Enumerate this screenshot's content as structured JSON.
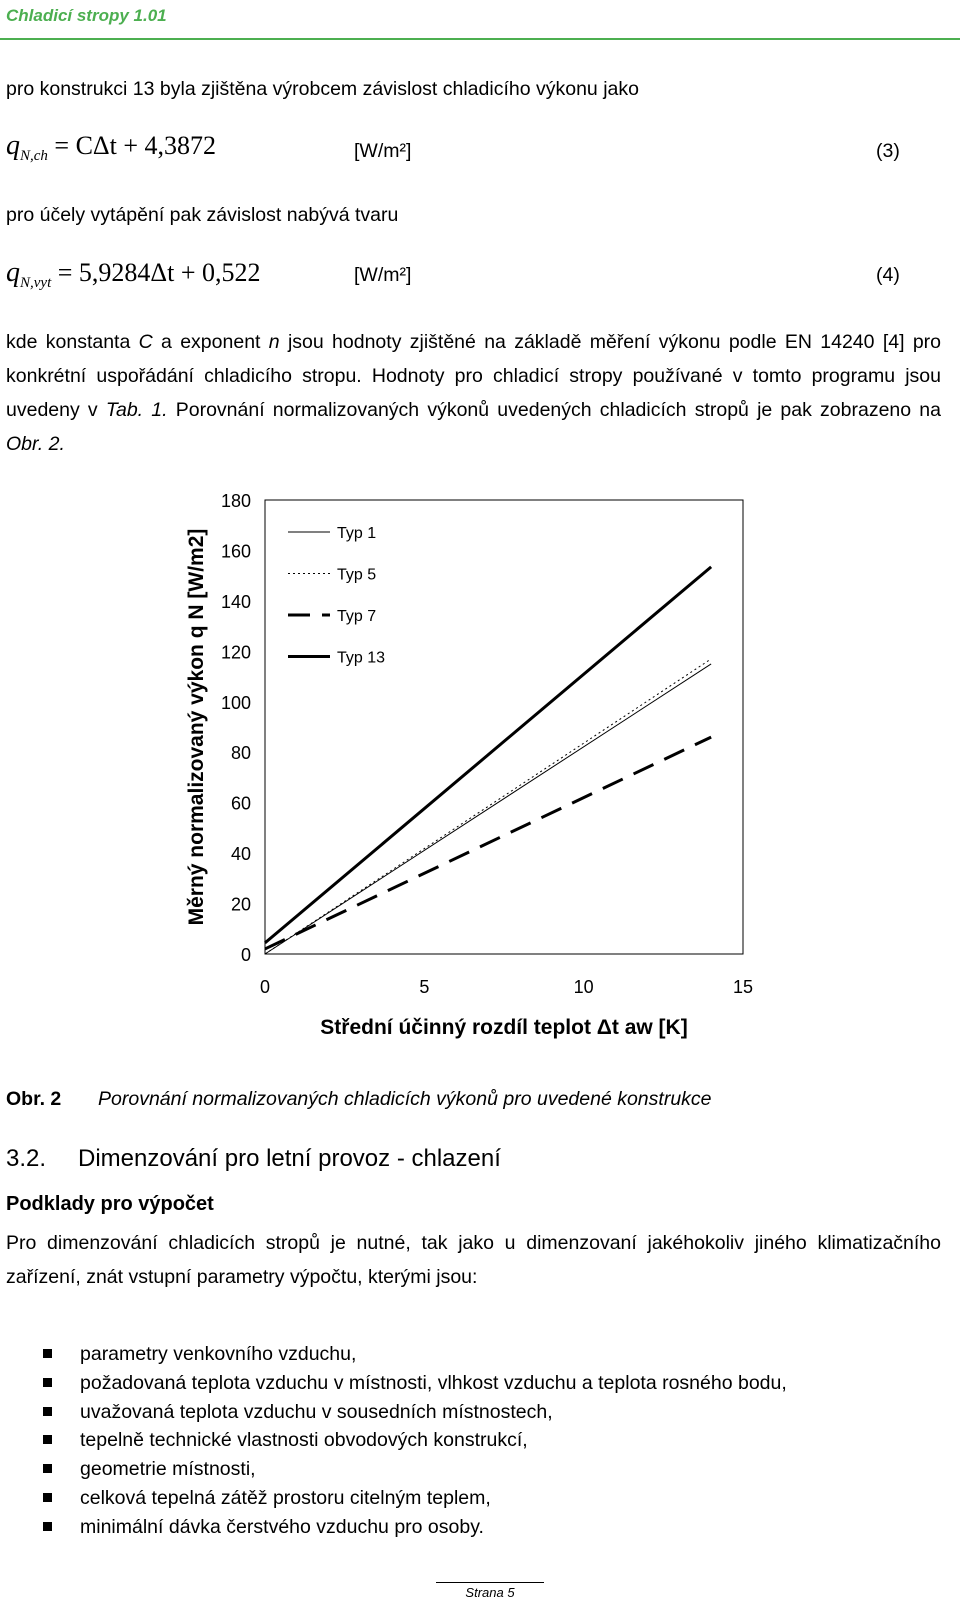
{
  "header": {
    "title": "Chladicí stropy 1.01"
  },
  "paragraph1": "pro konstrukci 13 byla zjištěna výrobcem závislost chladicího výkonu jako",
  "eq3": {
    "lhs": "q",
    "sub": "N,ch",
    "rhs": "= CΔt + 4,3872",
    "unit": "[W/m²]",
    "num": "(3)"
  },
  "paragraph2": "pro účely vytápění pak závislost nabývá tvaru",
  "eq4": {
    "lhs": "q",
    "sub": "N,vyt",
    "rhs": "= 5,9284Δt + 0,522",
    "unit": "[W/m²]",
    "num": "(4)"
  },
  "paragraph3": {
    "part1": "kde konstanta ",
    "C": "C",
    "part2": " a exponent ",
    "n": "n",
    "part3": " jsou hodnoty zjištěné na základě měření výkonu podle EN 14240 [4] pro konkrétní uspořádání chladicího stropu. Hodnoty pro chladicí stropy používané v tomto programu jsou uvedeny v ",
    "tab": "Tab. 1.",
    "part4": " Porovnání normalizovaných výkonů uvedených chladicích stropů je pak zobrazeno na ",
    "obr": "Obr. 2."
  },
  "chart_data": {
    "type": "line",
    "title": "",
    "xlabel": "Střední účinný rozdíl teplot Δt aw [K]",
    "ylabel": "Měrný normalizovaný výkon q N [W/m2]",
    "xlim": [
      0,
      15
    ],
    "ylim": [
      0,
      180
    ],
    "x_ticks": [
      "0",
      "5",
      "10",
      "15"
    ],
    "y_ticks": [
      "0",
      "20",
      "40",
      "60",
      "80",
      "100",
      "120",
      "140",
      "160",
      "180"
    ],
    "grid": false,
    "legend_position": "top-left",
    "series": [
      {
        "name": "Typ 1",
        "style": "thin",
        "x": [
          0,
          14
        ],
        "y": [
          0,
          115
        ]
      },
      {
        "name": "Typ 5",
        "style": "dotted",
        "x": [
          0,
          14
        ],
        "y": [
          0,
          117
        ]
      },
      {
        "name": "Typ 7",
        "style": "long-dash",
        "x": [
          0,
          14
        ],
        "y": [
          2,
          86
        ]
      },
      {
        "name": "Typ 13",
        "style": "thick",
        "x": [
          0,
          14
        ],
        "y": [
          4.4,
          153.5
        ]
      }
    ]
  },
  "caption": {
    "label": "Obr. 2",
    "text": "Porovnání normalizovaných chladicích výkonů pro uvedené konstrukce"
  },
  "section": {
    "number": "3.2.",
    "title": "Dimenzování pro letní provoz - chlazení"
  },
  "subsection": "Podklady pro výpočet",
  "paragraph4": "Pro dimenzování chladicích stropů je nutné, tak jako u dimenzovaní jakéhokoliv jiného klimatizačního zařízení, znát vstupní parametry výpočtu, kterými jsou:",
  "bullets": [
    "parametry venkovního vzduchu,",
    "požadovaná teplota vzduchu v místnosti, vlhkost vzduchu a teplota rosného bodu,",
    "uvažovaná teplota vzduchu v sousedních místnostech,",
    "tepelně technické vlastnosti obvodových konstrukcí,",
    "geometrie místnosti,",
    "celková tepelná zátěž  prostoru citelným teplem,",
    "minimální dávka čerstvého vzduchu pro osoby."
  ],
  "footer": "Strana 5"
}
